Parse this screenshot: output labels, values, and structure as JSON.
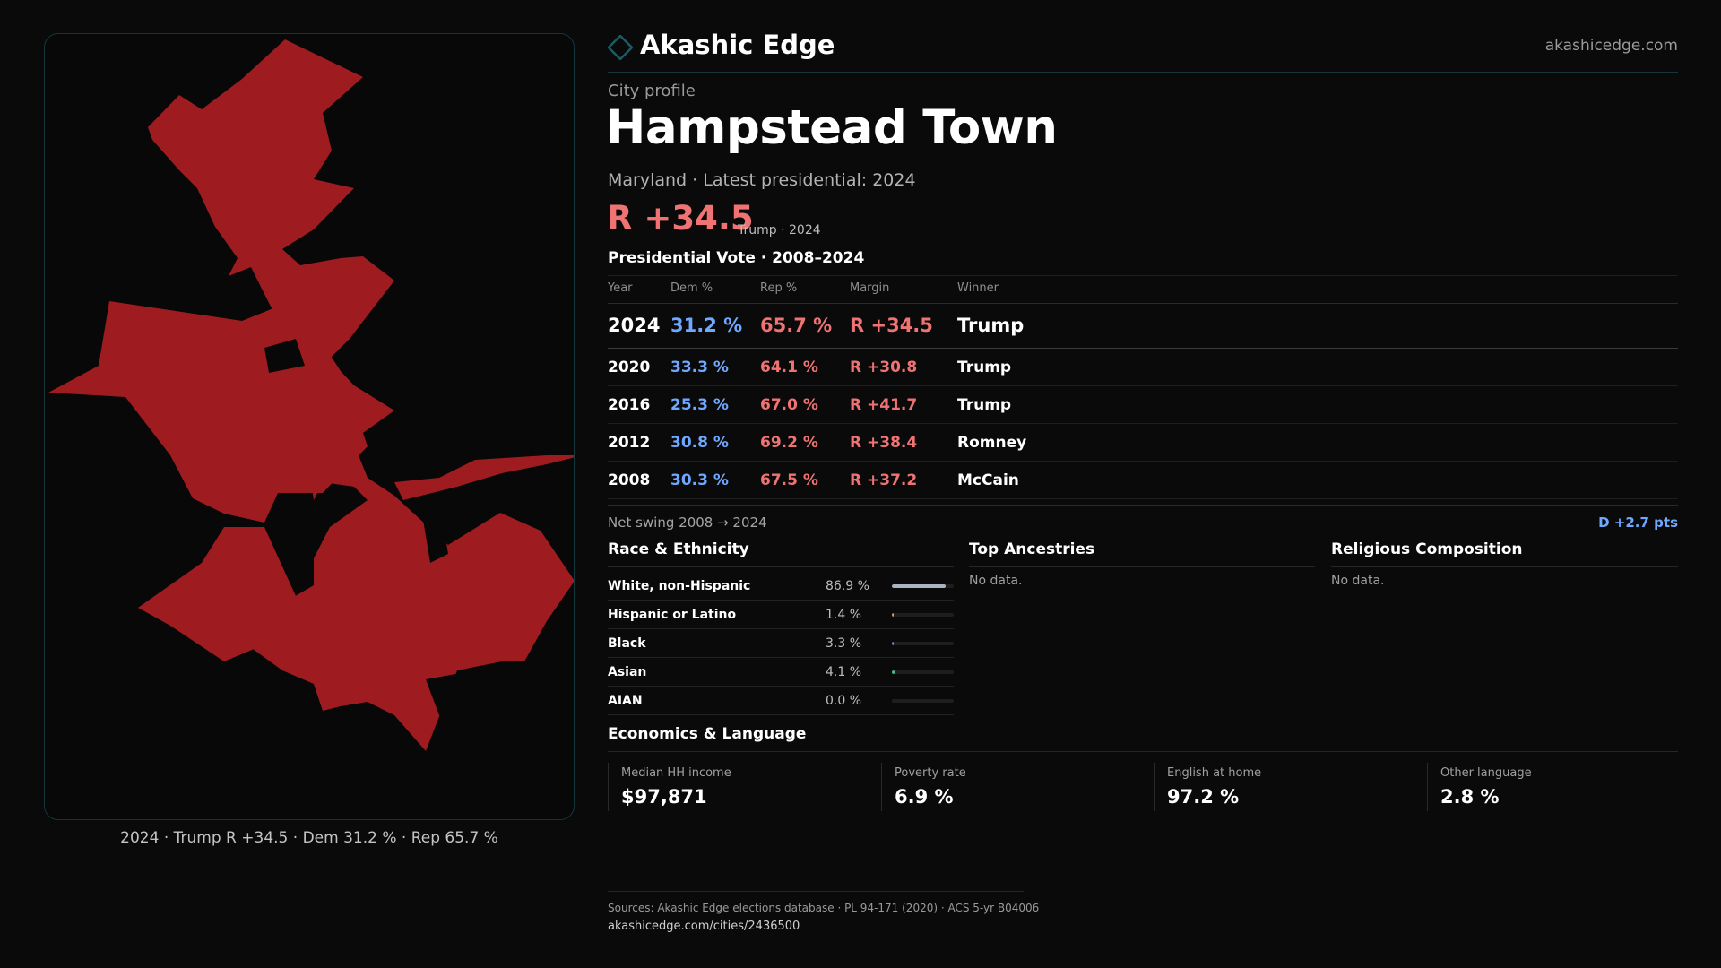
{
  "brand": {
    "name": "Akashic Edge",
    "url": "akashicedge.com",
    "accent": "#1a5c63"
  },
  "profile": {
    "eyebrow": "City profile",
    "title": "Hampstead Town",
    "subtitle": "Maryland · Latest presidential: 2024",
    "margin": "R +34.5",
    "margin_note": "Trump · 2024"
  },
  "map": {
    "caption": "2024 · Trump R +34.5 · Dem 31.2 % · Rep 65.7 %",
    "fill_color": "#9e1c1f"
  },
  "presidential": {
    "heading": "Presidential Vote · 2008–2024",
    "columns": {
      "year": "Year",
      "dem": "Dem %",
      "rep": "Rep %",
      "margin": "Margin",
      "winner": "Winner"
    },
    "rows": [
      {
        "year": "2024",
        "dem": "31.2 %",
        "rep": "65.7 %",
        "margin": "R +34.5",
        "winner": "Trump"
      },
      {
        "year": "2020",
        "dem": "33.3 %",
        "rep": "64.1 %",
        "margin": "R +30.8",
        "winner": "Trump"
      },
      {
        "year": "2016",
        "dem": "25.3 %",
        "rep": "67.0 %",
        "margin": "R +41.7",
        "winner": "Trump"
      },
      {
        "year": "2012",
        "dem": "30.8 %",
        "rep": "69.2 %",
        "margin": "R +38.4",
        "winner": "Romney"
      },
      {
        "year": "2008",
        "dem": "30.3 %",
        "rep": "67.5 %",
        "margin": "R +37.2",
        "winner": "McCain"
      }
    ],
    "swing_label": "Net swing 2008 → 2024",
    "swing_value": "D +2.7 pts",
    "dem_color": "#6ea8ff",
    "rep_color": "#f07373"
  },
  "race": {
    "title": "Race & Ethnicity",
    "rows": [
      {
        "name": "White, non-Hispanic",
        "pct": "86.9 %",
        "share": 0.869,
        "color": "#a9b4c2"
      },
      {
        "name": "Hispanic or Latino",
        "pct": "1.4 %",
        "share": 0.014,
        "color": "#c7a340"
      },
      {
        "name": "Black",
        "pct": "3.3 %",
        "share": 0.033,
        "color": "#8b7bd8"
      },
      {
        "name": "Asian",
        "pct": "4.1 %",
        "share": 0.041,
        "color": "#3fbf8a"
      },
      {
        "name": "AIAN",
        "pct": "0.0 %",
        "share": 0.0,
        "color": "#d97a3a"
      }
    ]
  },
  "ancestries": {
    "title": "Top Ancestries",
    "empty": "No data."
  },
  "religion": {
    "title": "Religious Composition",
    "empty": "No data."
  },
  "economics": {
    "title": "Economics & Language",
    "cards": [
      {
        "label": "Median HH income",
        "value": "$97,871"
      },
      {
        "label": "Poverty rate",
        "value": "6.9 %"
      },
      {
        "label": "English at home",
        "value": "97.2 %"
      },
      {
        "label": "Other language",
        "value": "2.8 %"
      }
    ]
  },
  "footer": {
    "sources": "Sources: Akashic Edge elections database · PL 94-171 (2020) · ACS 5-yr B04006",
    "url": "akashicedge.com/cities/2436500"
  }
}
